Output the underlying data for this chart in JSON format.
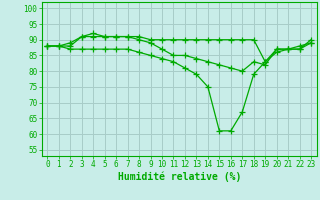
{
  "xlabel": "Humidité relative (%)",
  "bg_color": "#c8ede8",
  "grid_color": "#a8ccc8",
  "line_color": "#00aa00",
  "marker": "+",
  "xlim": [
    -0.5,
    23.5
  ],
  "ylim": [
    53,
    102
  ],
  "yticks": [
    55,
    60,
    65,
    70,
    75,
    80,
    85,
    90,
    95,
    100
  ],
  "xticks": [
    0,
    1,
    2,
    3,
    4,
    5,
    6,
    7,
    8,
    9,
    10,
    11,
    12,
    13,
    14,
    15,
    16,
    17,
    18,
    19,
    20,
    21,
    22,
    23
  ],
  "series": [
    [
      88,
      88,
      88,
      91,
      91,
      91,
      91,
      91,
      91,
      90,
      90,
      90,
      90,
      90,
      90,
      90,
      90,
      90,
      90,
      83,
      87,
      87,
      87,
      90
    ],
    [
      88,
      88,
      89,
      91,
      92,
      91,
      91,
      91,
      90,
      89,
      87,
      85,
      85,
      84,
      83,
      82,
      81,
      80,
      83,
      82,
      87,
      87,
      88,
      89
    ],
    [
      88,
      88,
      87,
      87,
      87,
      87,
      87,
      87,
      86,
      85,
      84,
      83,
      81,
      79,
      75,
      61,
      61,
      67,
      79,
      83,
      86,
      87,
      87,
      89
    ]
  ],
  "xlabel_fontsize": 7,
  "tick_fontsize": 5.5,
  "linewidth": 0.9,
  "markersize": 4
}
